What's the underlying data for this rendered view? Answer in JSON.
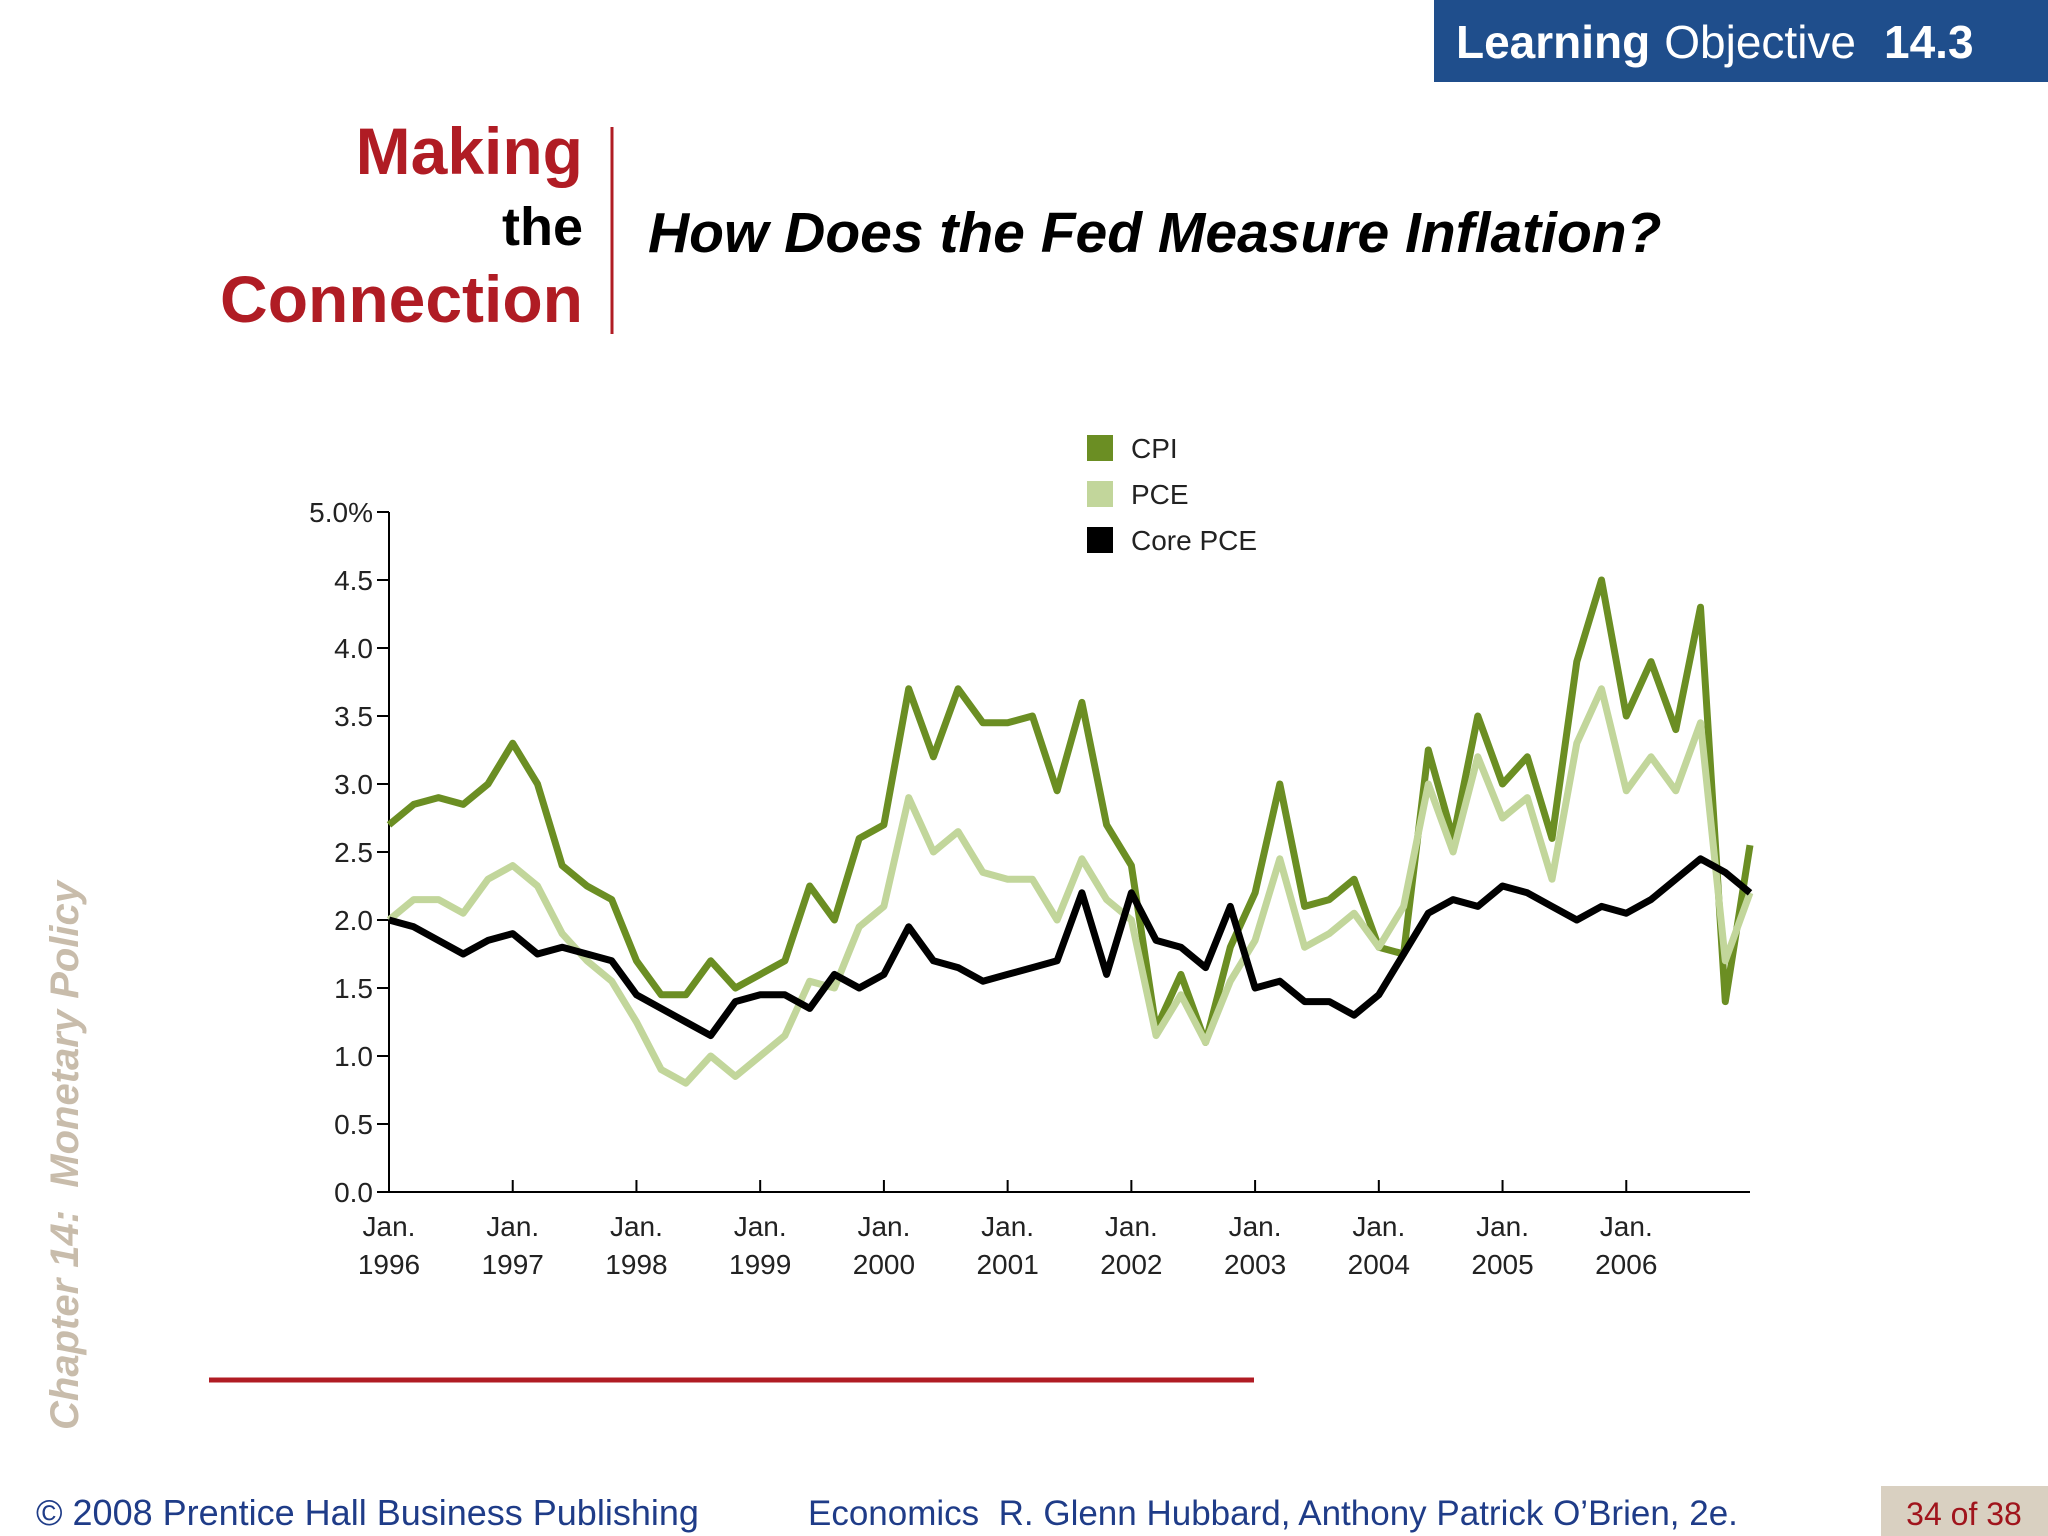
{
  "header": {
    "badge": {
      "bold": "Learning",
      "regular": "Objective",
      "number": "14.3"
    },
    "making": "Making",
    "the": "the",
    "connection": "Connection",
    "headline": "How Does the Fed Measure Inflation?"
  },
  "sidebar": "Chapter 14:  Monetary Policy",
  "footer": {
    "publisher": "© 2008 Prentice Hall Business Publishing",
    "book": "Economics  R. Glenn Hubbard, Anthony Patrick O’Brien, 2e.",
    "page": "34 of 38"
  },
  "chart_data": {
    "type": "line",
    "x": [
      1996.0,
      1996.2,
      1996.4,
      1996.6,
      1996.8,
      1997.0,
      1997.2,
      1997.4,
      1997.6,
      1997.8,
      1998.0,
      1998.2,
      1998.4,
      1998.6,
      1998.8,
      1999.0,
      1999.2,
      1999.4,
      1999.6,
      1999.8,
      2000.0,
      2000.2,
      2000.4,
      2000.6,
      2000.8,
      2001.0,
      2001.2,
      2001.4,
      2001.6,
      2001.8,
      2002.0,
      2002.2,
      2002.4,
      2002.6,
      2002.8,
      2003.0,
      2003.2,
      2003.4,
      2003.6,
      2003.8,
      2004.0,
      2004.2,
      2004.4,
      2004.6,
      2004.8,
      2005.0,
      2005.2,
      2005.4,
      2005.6,
      2005.8,
      2006.0,
      2006.2,
      2006.4,
      2006.6,
      2006.8,
      2007.0
    ],
    "series": [
      {
        "name": "CPI",
        "color": "#6b8e23",
        "values": [
          2.7,
          2.85,
          2.9,
          2.85,
          3.0,
          3.3,
          3.0,
          2.4,
          2.25,
          2.15,
          1.7,
          1.45,
          1.45,
          1.7,
          1.5,
          1.6,
          1.7,
          2.25,
          2.0,
          2.6,
          2.7,
          3.7,
          3.2,
          3.7,
          3.45,
          3.45,
          3.5,
          2.95,
          3.6,
          2.7,
          2.4,
          1.2,
          1.6,
          1.1,
          1.8,
          2.2,
          3.0,
          2.1,
          2.15,
          2.3,
          1.8,
          1.75,
          3.25,
          2.6,
          3.5,
          3.0,
          3.2,
          2.6,
          3.9,
          4.5,
          3.5,
          3.9,
          3.4,
          4.3,
          1.4,
          2.55
        ]
      },
      {
        "name": "PCE",
        "color": "#c2d69b",
        "values": [
          2.0,
          2.15,
          2.15,
          2.05,
          2.3,
          2.4,
          2.25,
          1.9,
          1.7,
          1.55,
          1.25,
          0.9,
          0.8,
          1.0,
          0.85,
          1.0,
          1.15,
          1.55,
          1.5,
          1.95,
          2.1,
          2.9,
          2.5,
          2.65,
          2.35,
          2.3,
          2.3,
          2.0,
          2.45,
          2.15,
          2.0,
          1.15,
          1.45,
          1.1,
          1.55,
          1.85,
          2.45,
          1.8,
          1.9,
          2.05,
          1.8,
          2.1,
          3.0,
          2.5,
          3.2,
          2.75,
          2.9,
          2.3,
          3.3,
          3.7,
          2.95,
          3.2,
          2.95,
          3.45,
          1.7,
          2.2
        ]
      },
      {
        "name": "Core PCE",
        "color": "#000000",
        "values": [
          2.0,
          1.95,
          1.85,
          1.75,
          1.85,
          1.9,
          1.75,
          1.8,
          1.75,
          1.7,
          1.45,
          1.35,
          1.25,
          1.15,
          1.4,
          1.45,
          1.45,
          1.35,
          1.6,
          1.5,
          1.6,
          1.95,
          1.7,
          1.65,
          1.55,
          1.6,
          1.65,
          1.7,
          2.2,
          1.6,
          2.2,
          1.85,
          1.8,
          1.65,
          2.1,
          1.5,
          1.55,
          1.4,
          1.4,
          1.3,
          1.45,
          1.75,
          2.05,
          2.15,
          2.1,
          2.25,
          2.2,
          2.1,
          2.0,
          2.1,
          2.05,
          2.15,
          2.3,
          2.45,
          2.35,
          2.2
        ]
      }
    ],
    "xlim": [
      1996,
      2007
    ],
    "xticks": [
      {
        "value": 1996,
        "label": "Jan. 1996"
      },
      {
        "value": 1997,
        "label": "Jan. 1997"
      },
      {
        "value": 1998,
        "label": "Jan. 1998"
      },
      {
        "value": 1999,
        "label": "Jan. 1999"
      },
      {
        "value": 2000,
        "label": "Jan. 2000"
      },
      {
        "value": 2001,
        "label": "Jan. 2001"
      },
      {
        "value": 2002,
        "label": "Jan. 2002"
      },
      {
        "value": 2003,
        "label": "Jan. 2003"
      },
      {
        "value": 2004,
        "label": "Jan. 2004"
      },
      {
        "value": 2005,
        "label": "Jan. 2005"
      },
      {
        "value": 2006,
        "label": "Jan. 2006"
      }
    ],
    "ylim": [
      0,
      5
    ],
    "yticks": [
      {
        "value": 0,
        "label": "0.0"
      },
      0.5,
      {
        "value": 1,
        "label": "1.0"
      },
      1.5,
      {
        "value": 2,
        "label": "2.0"
      },
      2.5,
      {
        "value": 3,
        "label": "3.0"
      },
      3.5,
      {
        "value": 4,
        "label": "4.0"
      },
      4.5,
      {
        "value": 5,
        "label": "5.0%"
      }
    ],
    "grid": false,
    "legend": "top"
  }
}
